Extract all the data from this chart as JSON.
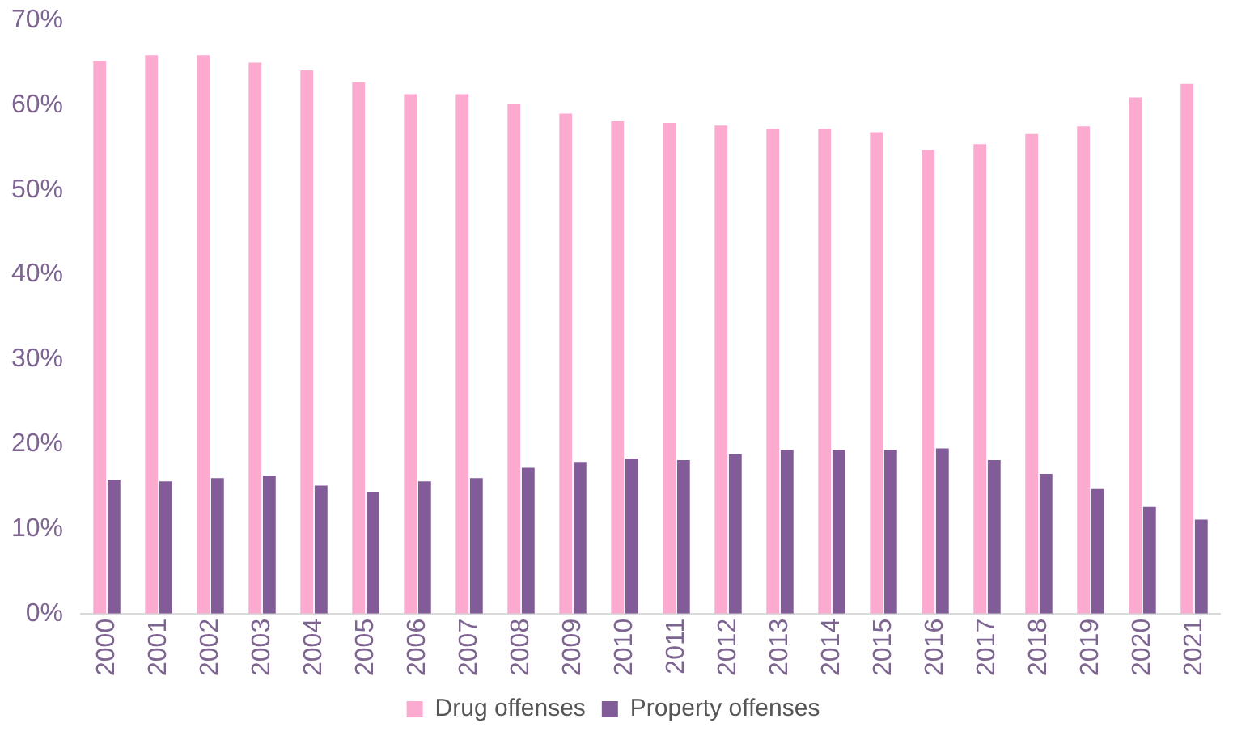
{
  "chart_data": {
    "type": "bar",
    "categories": [
      "2000",
      "2001",
      "2002",
      "2003",
      "2004",
      "2005",
      "2006",
      "2007",
      "2008",
      "2009",
      "2010",
      "2011",
      "2012",
      "2013",
      "2014",
      "2015",
      "2016",
      "2017",
      "2018",
      "2019",
      "2020",
      "2021"
    ],
    "series": [
      {
        "name": "Drug offenses",
        "color": "#fbaad0",
        "values": [
          65.2,
          65.9,
          65.9,
          65.0,
          64.1,
          62.7,
          61.3,
          61.3,
          60.2,
          59.0,
          58.1,
          57.9,
          57.6,
          57.2,
          57.2,
          56.8,
          54.7,
          55.4,
          56.6,
          57.5,
          60.9,
          62.5
        ]
      },
      {
        "name": "Property offenses",
        "color": "#825b99",
        "values": [
          15.8,
          15.6,
          16.0,
          16.3,
          15.1,
          14.4,
          15.6,
          16.0,
          17.2,
          17.9,
          18.3,
          18.1,
          18.8,
          19.3,
          19.3,
          19.3,
          19.5,
          18.1,
          16.5,
          14.7,
          12.6,
          11.1
        ]
      }
    ],
    "ylim": [
      0,
      70
    ],
    "yticks": [
      {
        "value": 0,
        "label": "0%"
      },
      {
        "value": 10,
        "label": "10%"
      },
      {
        "value": 20,
        "label": "20%"
      },
      {
        "value": 30,
        "label": "30%"
      },
      {
        "value": 40,
        "label": "40%"
      },
      {
        "value": 50,
        "label": "50%"
      },
      {
        "value": 60,
        "label": "60%"
      },
      {
        "value": 70,
        "label": "70%"
      }
    ],
    "grid": false,
    "legend": "bottom"
  }
}
